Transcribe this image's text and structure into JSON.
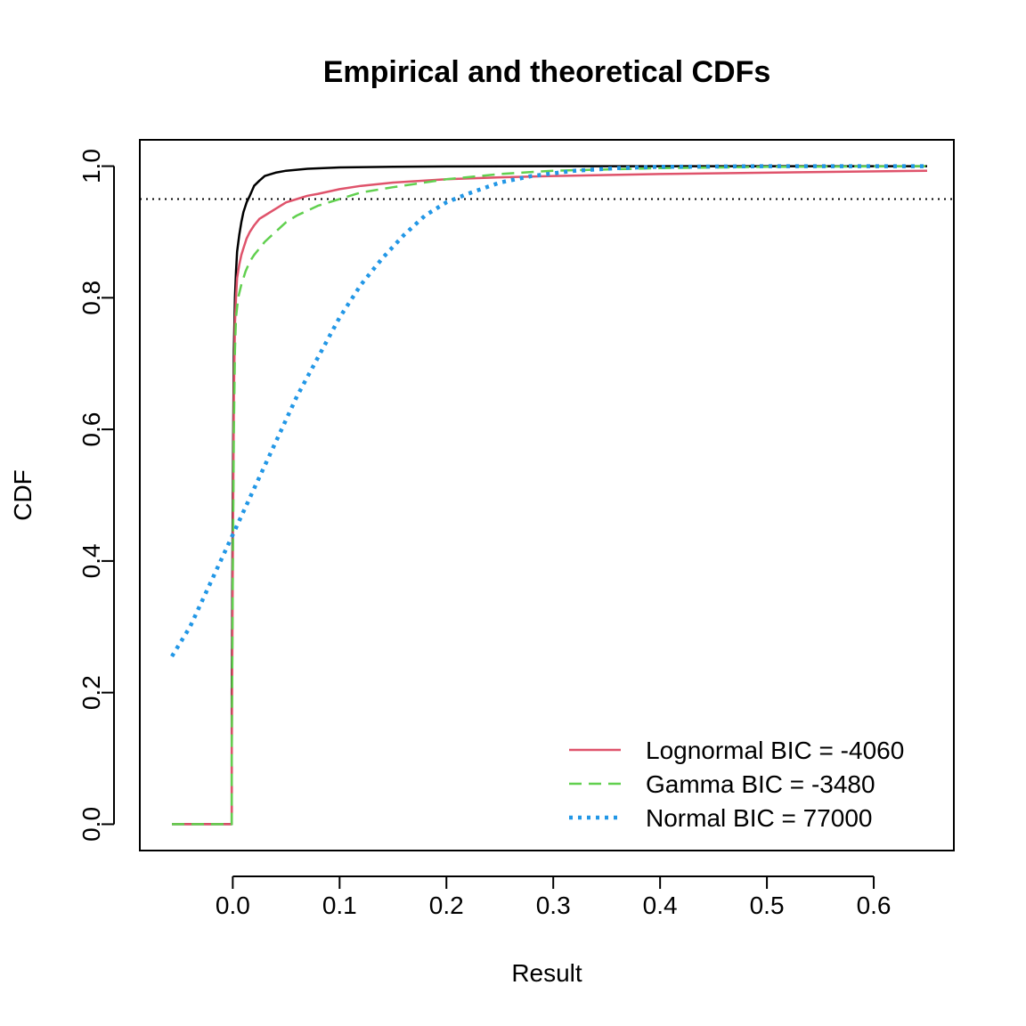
{
  "chart_data": {
    "type": "line",
    "title": "Empirical and theoretical CDFs",
    "xlabel": "Result",
    "ylabel": "CDF",
    "xlim": [
      -0.087,
      0.675
    ],
    "ylim": [
      -0.04,
      1.04
    ],
    "x_ticks": [
      0.0,
      0.1,
      0.2,
      0.3,
      0.4,
      0.5,
      0.6
    ],
    "x_tick_labels": [
      "0.0",
      "0.1",
      "0.2",
      "0.3",
      "0.4",
      "0.5",
      "0.6"
    ],
    "y_ticks": [
      0.0,
      0.2,
      0.4,
      0.6,
      0.8,
      1.0
    ],
    "y_tick_labels": [
      "0.0",
      "0.2",
      "0.4",
      "0.6",
      "0.8",
      "1.0"
    ],
    "reference_line": {
      "y": 0.95,
      "style": "dotted",
      "color": "#000000"
    },
    "legend_position": "bottom-right",
    "series": [
      {
        "role": "empirical",
        "color": "#000000",
        "style": "solid",
        "x": [
          -0.057,
          -0.001,
          -0.001,
          0.0,
          0.001,
          0.002,
          0.003,
          0.004,
          0.006,
          0.008,
          0.01,
          0.013,
          0.016,
          0.02,
          0.025,
          0.03,
          0.04,
          0.05,
          0.07,
          0.1,
          0.15,
          0.2,
          0.3,
          0.4,
          0.5,
          0.65
        ],
        "y": [
          0.0,
          0.0,
          0.2,
          0.5,
          0.72,
          0.8,
          0.84,
          0.87,
          0.895,
          0.915,
          0.93,
          0.945,
          0.955,
          0.97,
          0.978,
          0.985,
          0.99,
          0.993,
          0.996,
          0.998,
          0.999,
          0.9995,
          1.0,
          1.0,
          1.0,
          1.0
        ]
      },
      {
        "name": "Lognormal BIC = -4060",
        "color": "#DF536B",
        "style": "solid",
        "x": [
          -0.057,
          -0.001,
          -0.001,
          0.0,
          0.001,
          0.002,
          0.003,
          0.004,
          0.006,
          0.008,
          0.01,
          0.013,
          0.016,
          0.02,
          0.025,
          0.03,
          0.04,
          0.05,
          0.06,
          0.07,
          0.08,
          0.1,
          0.12,
          0.15,
          0.2,
          0.25,
          0.3,
          0.4,
          0.5,
          0.65
        ],
        "y": [
          0.0,
          0.0,
          0.1,
          0.4,
          0.65,
          0.76,
          0.8,
          0.83,
          0.85,
          0.865,
          0.875,
          0.89,
          0.9,
          0.91,
          0.92,
          0.925,
          0.935,
          0.945,
          0.95,
          0.955,
          0.958,
          0.965,
          0.97,
          0.975,
          0.98,
          0.983,
          0.985,
          0.988,
          0.99,
          0.993
        ]
      },
      {
        "name": "Gamma BIC = -3480",
        "color": "#61D04F",
        "style": "dashed",
        "x": [
          -0.057,
          -0.001,
          -0.001,
          0.0,
          0.001,
          0.002,
          0.003,
          0.005,
          0.008,
          0.012,
          0.016,
          0.02,
          0.025,
          0.03,
          0.04,
          0.05,
          0.06,
          0.08,
          0.1,
          0.12,
          0.15,
          0.2,
          0.25,
          0.3,
          0.4,
          0.5,
          0.65
        ],
        "y": [
          0.0,
          0.0,
          0.1,
          0.38,
          0.6,
          0.72,
          0.77,
          0.8,
          0.82,
          0.84,
          0.855,
          0.865,
          0.875,
          0.885,
          0.9,
          0.915,
          0.925,
          0.94,
          0.95,
          0.96,
          0.968,
          0.98,
          0.988,
          0.993,
          0.997,
          0.999,
          1.0
        ]
      },
      {
        "name": "Normal BIC = 77000",
        "color": "#2297E6",
        "style": "dotted",
        "x": [
          -0.057,
          -0.04,
          -0.02,
          0.0,
          0.02,
          0.04,
          0.06,
          0.08,
          0.1,
          0.12,
          0.14,
          0.16,
          0.18,
          0.2,
          0.22,
          0.25,
          0.28,
          0.32,
          0.36,
          0.4,
          0.5,
          0.65
        ],
        "y": [
          0.255,
          0.3,
          0.37,
          0.44,
          0.51,
          0.58,
          0.65,
          0.71,
          0.77,
          0.82,
          0.86,
          0.895,
          0.925,
          0.945,
          0.958,
          0.975,
          0.985,
          0.993,
          0.997,
          0.999,
          1.0,
          1.0
        ]
      }
    ]
  }
}
